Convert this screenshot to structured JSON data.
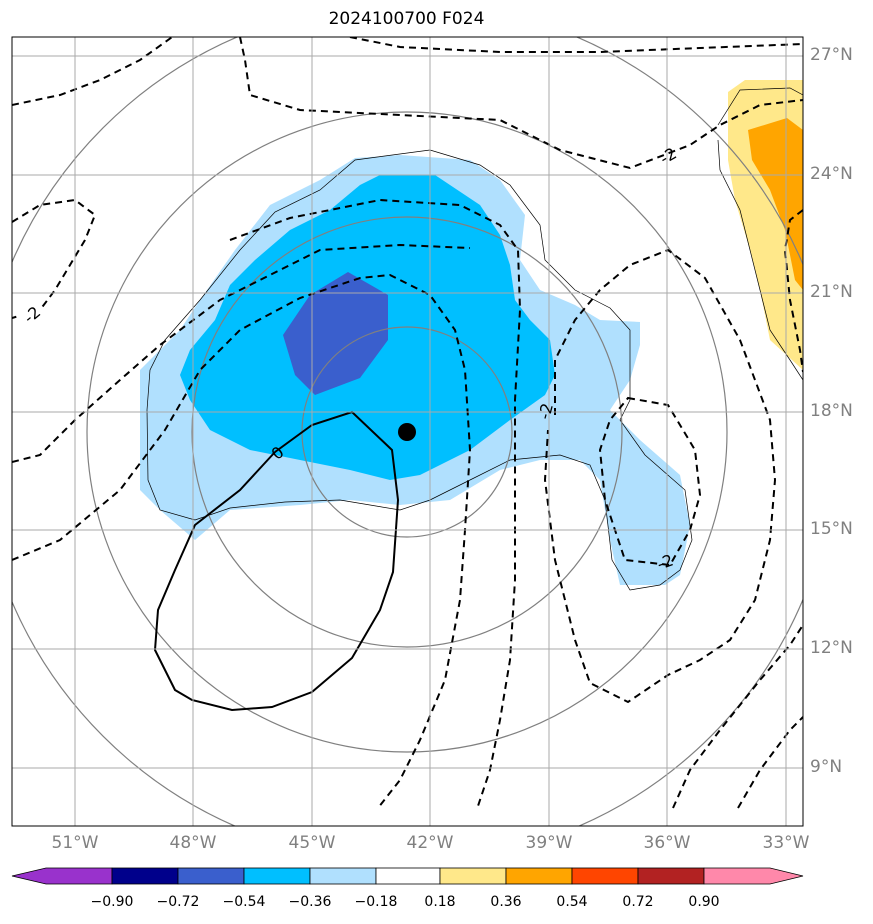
{
  "title": "2024100700 F024",
  "lat_labels": [
    "27°N",
    "24°N",
    "21°N",
    "18°N",
    "15°N",
    "12°N",
    "9°N"
  ],
  "lon_labels": [
    "51°W",
    "48°W",
    "45°W",
    "42°W",
    "39°W",
    "36°W",
    "33°W"
  ],
  "contour_labels": [
    "-2",
    "-2",
    "-2",
    "-2",
    "0"
  ],
  "colorbar": {
    "labels": [
      "−0.90",
      "−0.72",
      "−0.54",
      "−0.36",
      "−0.18",
      "0.18",
      "0.36",
      "0.54",
      "0.72",
      "0.90"
    ],
    "colors": [
      "#9932cc",
      "#00008b",
      "#3a5fcd",
      "#00bfff",
      "#b0e0fe",
      "#ffffff",
      "#ffe88a",
      "#ffa500",
      "#ff4500",
      "#b22222",
      "#ff88aa"
    ]
  },
  "fill_colors": {
    "light_blue": "#b0e0fe",
    "deep_sky": "#00bfff",
    "royal": "#3a5fcd",
    "light_yellow": "#ffe88a",
    "orange": "#ffa500"
  },
  "center_marker": "storm-center-dot"
}
